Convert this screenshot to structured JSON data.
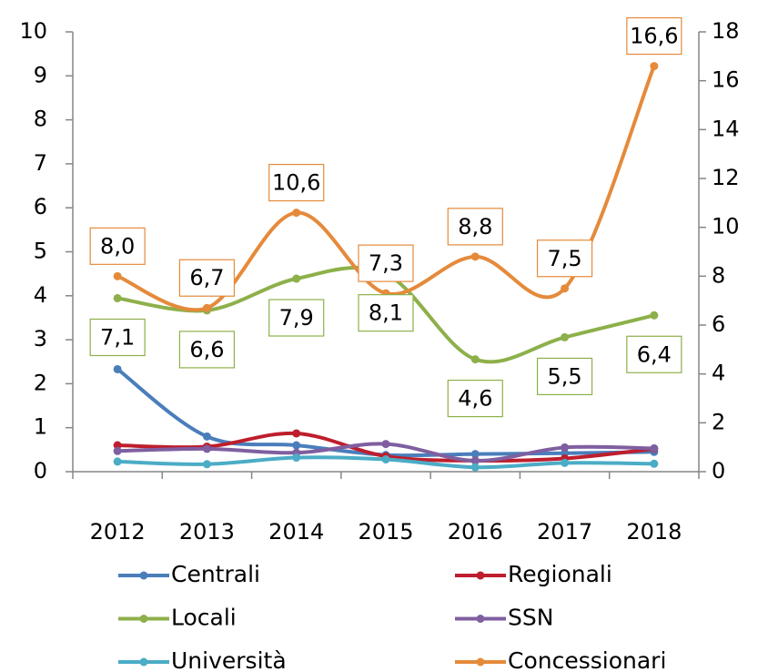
{
  "chart_data": {
    "type": "line",
    "categories": [
      "2012",
      "2013",
      "2014",
      "2015",
      "2016",
      "2017",
      "2018"
    ],
    "ylim": [
      0,
      10
    ],
    "yticks": [
      0,
      1,
      2,
      3,
      4,
      5,
      6,
      7,
      8,
      9,
      10
    ],
    "y2lim": [
      0,
      18
    ],
    "y2ticks": [
      0,
      2,
      4,
      6,
      8,
      10,
      12,
      14,
      16,
      18
    ],
    "grid": false,
    "series": [
      {
        "name": "Centrali",
        "color": "#4a7ebb",
        "values": [
          2.33,
          0.8,
          0.6,
          0.38,
          0.4,
          0.42,
          0.45
        ]
      },
      {
        "name": "Regionali",
        "color": "#be1e2d",
        "values": [
          0.6,
          0.57,
          0.87,
          0.35,
          0.25,
          0.3,
          0.52
        ]
      },
      {
        "name": "Locali",
        "color": "#8db04a",
        "axis": "y2",
        "values": [
          7.1,
          6.6,
          7.9,
          8.1,
          4.6,
          5.5,
          6.4
        ],
        "value_labels": [
          "7,1",
          "6,6",
          "7,9",
          "8,1",
          "4,6",
          "5,5",
          "6,4"
        ]
      },
      {
        "name": "SSN",
        "color": "#7f5fa0",
        "values": [
          0.47,
          0.52,
          0.43,
          0.63,
          0.25,
          0.55,
          0.53
        ]
      },
      {
        "name": "Università",
        "color": "#4bacc6",
        "values": [
          0.23,
          0.17,
          0.32,
          0.28,
          0.1,
          0.2,
          0.18
        ]
      },
      {
        "name": "Concessionari",
        "color": "#e58a3b",
        "axis": "y2",
        "values": [
          8.0,
          6.7,
          10.6,
          7.3,
          8.8,
          7.5,
          16.6
        ],
        "value_labels": [
          "8,0",
          "6,7",
          "10,6",
          "7,3",
          "8,8",
          "7,5",
          "16,6"
        ]
      }
    ]
  }
}
